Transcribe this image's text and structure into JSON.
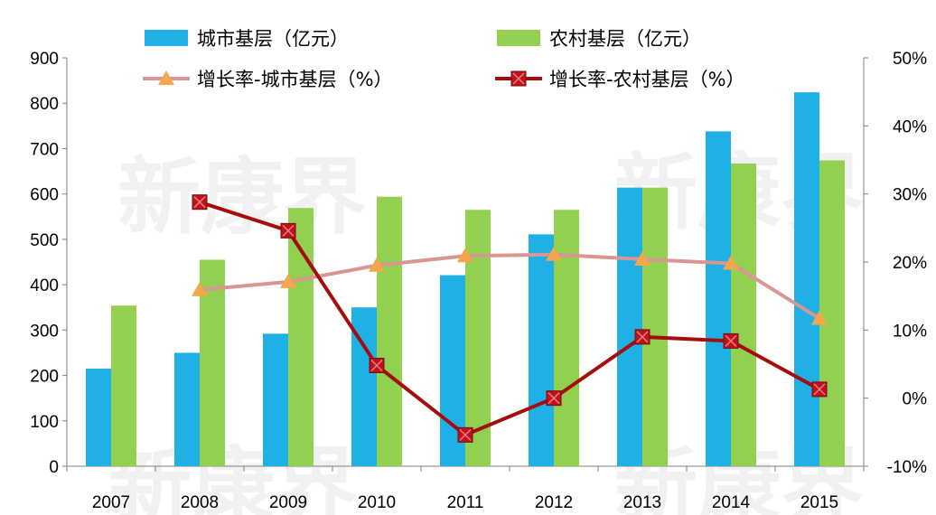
{
  "chart_data": {
    "type": "bar",
    "categories": [
      "2007",
      "2008",
      "2009",
      "2010",
      "2011",
      "2012",
      "2013",
      "2014",
      "2015"
    ],
    "series": [
      {
        "name": "城市基层（亿元）",
        "type": "bar",
        "axis": "left",
        "color": "#1fb1e6",
        "values": [
          215,
          250,
          292,
          350,
          421,
          511,
          614,
          738,
          824
        ]
      },
      {
        "name": "农村基层（亿元）",
        "type": "bar",
        "axis": "left",
        "color": "#92d050",
        "values": [
          354,
          455,
          569,
          594,
          565,
          565,
          614,
          667,
          674
        ]
      },
      {
        "name": "增长率-城市基层（%）",
        "type": "line",
        "axis": "right",
        "color": "#d99694",
        "marker": "triangle",
        "marker_color": "#f5a64c",
        "values": [
          null,
          15.9,
          17.1,
          19.5,
          20.9,
          21.1,
          20.4,
          19.8,
          11.7
        ]
      },
      {
        "name": "增长率-农村基层（%）",
        "type": "line",
        "axis": "right",
        "color": "#a50d0d",
        "marker": "square-x",
        "marker_color": "#c0121c",
        "values": [
          null,
          28.8,
          24.6,
          4.8,
          -5.4,
          0.0,
          9.0,
          8.4,
          1.3
        ]
      }
    ],
    "yaxis_left": {
      "ylim": [
        0,
        900
      ],
      "ticks": [
        "0",
        "100",
        "200",
        "300",
        "400",
        "500",
        "600",
        "700",
        "800",
        "900"
      ]
    },
    "yaxis_right": {
      "ylim": [
        -10,
        50
      ],
      "ticks": [
        "-10%",
        "0%",
        "10%",
        "20%",
        "30%",
        "40%",
        "50%"
      ]
    },
    "grid": false,
    "legend_position": "top"
  },
  "watermark": {
    "text": "新康界"
  }
}
